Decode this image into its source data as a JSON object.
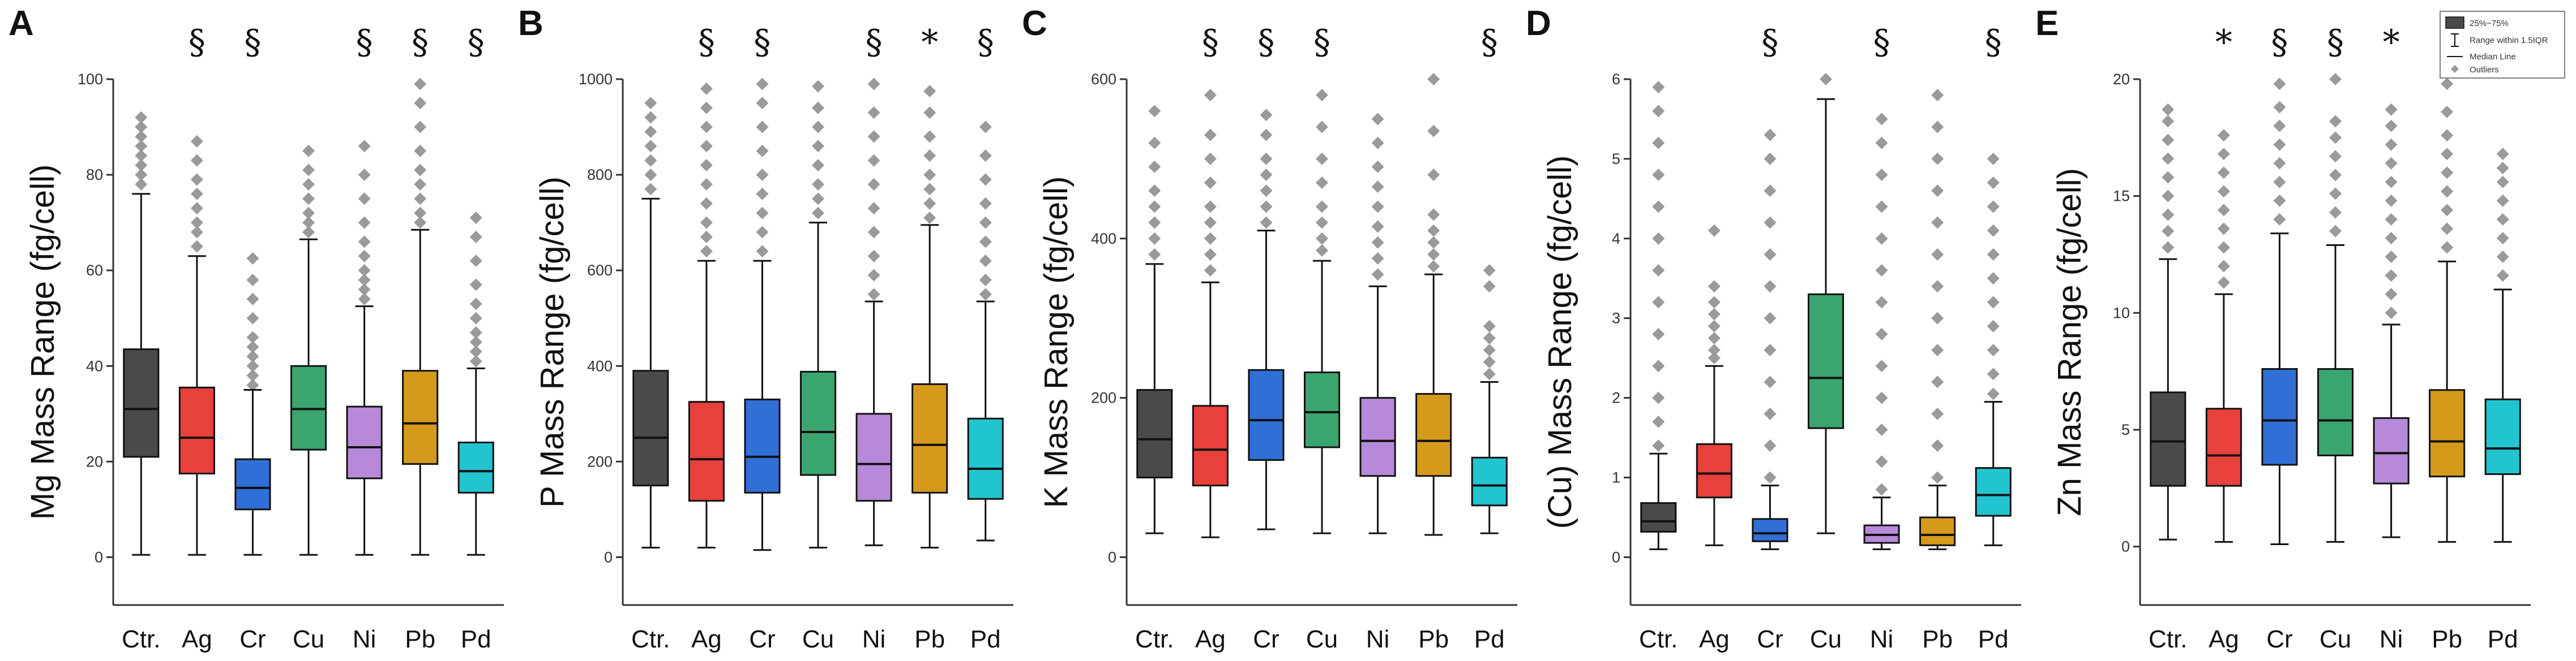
{
  "colors": {
    "Ctr.": "#4a4a4a",
    "Ag": "#e8403a",
    "Cr": "#2f6fd6",
    "Cu": "#3aa56e",
    "Ni": "#b68ad8",
    "Pb": "#d59a1c",
    "Pd": "#22c4cf",
    "outlier": "#9a9a9a"
  },
  "legend": {
    "box": "25%~75%",
    "whisker": "Range within 1.5IQR",
    "median": "Median Line",
    "outlier": "Outliers"
  },
  "chart_data": [
    {
      "type": "box",
      "panel": "A",
      "title": "",
      "ylabel": "Mg Mass Range (fg/cell)",
      "xlabel": "",
      "ylim": [
        -10,
        100
      ],
      "yticks": [
        0,
        20,
        40,
        60,
        80,
        100
      ],
      "categories": [
        "Ctr.",
        "Ag",
        "Cr",
        "Cu",
        "Ni",
        "Pb",
        "Pd"
      ],
      "significance": [
        "",
        "§",
        "§",
        "",
        "§",
        "§",
        "§"
      ],
      "boxes": [
        {
          "min": 0.5,
          "q1": 21,
          "median": 31,
          "q3": 43.5,
          "max": 76,
          "outliers": [
            78,
            80,
            82,
            84,
            86,
            88,
            90,
            92
          ]
        },
        {
          "min": 0.5,
          "q1": 17.5,
          "median": 25,
          "q3": 35.5,
          "max": 63,
          "outliers": [
            65,
            68,
            70,
            73,
            76,
            79,
            83,
            87
          ]
        },
        {
          "min": 0.5,
          "q1": 10,
          "median": 14.5,
          "q3": 20.5,
          "max": 35,
          "outliers": [
            36,
            38,
            40,
            42,
            44,
            46,
            50,
            54,
            58,
            62.5
          ]
        },
        {
          "min": 0.5,
          "q1": 22.5,
          "median": 31,
          "q3": 40,
          "max": 66.5,
          "outliers": [
            68,
            70,
            72,
            75,
            78,
            81,
            85
          ]
        },
        {
          "min": 0.5,
          "q1": 16.5,
          "median": 23,
          "q3": 31.5,
          "max": 52.5,
          "outliers": [
            54,
            56,
            58,
            60,
            63,
            66,
            70,
            75,
            80,
            86
          ]
        },
        {
          "min": 0.5,
          "q1": 19.5,
          "median": 28,
          "q3": 39,
          "max": 68.5,
          "outliers": [
            70,
            72,
            75,
            78,
            81,
            85,
            90,
            95,
            99
          ]
        },
        {
          "min": 0.5,
          "q1": 13.5,
          "median": 18,
          "q3": 24,
          "max": 39.5,
          "outliers": [
            41,
            43,
            45,
            47,
            50,
            53,
            57,
            62,
            67,
            71
          ]
        }
      ]
    },
    {
      "type": "box",
      "panel": "B",
      "title": "",
      "ylabel": "P Mass Range (fg/cell)",
      "xlabel": "",
      "ylim": [
        -100,
        1000
      ],
      "yticks": [
        0,
        200,
        400,
        600,
        800,
        1000
      ],
      "categories": [
        "Ctr.",
        "Ag",
        "Cr",
        "Cu",
        "Ni",
        "Pb",
        "Pd"
      ],
      "significance": [
        "",
        "§",
        "§",
        "",
        "§",
        "*",
        "§"
      ],
      "boxes": [
        {
          "min": 20,
          "q1": 150,
          "median": 250,
          "q3": 390,
          "max": 750,
          "outliers": [
            770,
            800,
            830,
            860,
            890,
            920,
            950
          ]
        },
        {
          "min": 20,
          "q1": 118,
          "median": 205,
          "q3": 325,
          "max": 620,
          "outliers": [
            640,
            670,
            700,
            740,
            780,
            820,
            860,
            900,
            940,
            980
          ]
        },
        {
          "min": 15,
          "q1": 135,
          "median": 210,
          "q3": 330,
          "max": 620,
          "outliers": [
            640,
            680,
            720,
            760,
            800,
            850,
            900,
            950,
            990
          ]
        },
        {
          "min": 20,
          "q1": 172,
          "median": 262,
          "q3": 388,
          "max": 700,
          "outliers": [
            720,
            750,
            780,
            820,
            860,
            900,
            940,
            985
          ]
        },
        {
          "min": 25,
          "q1": 118,
          "median": 195,
          "q3": 300,
          "max": 535,
          "outliers": [
            550,
            590,
            630,
            680,
            730,
            780,
            830,
            880,
            930,
            990
          ]
        },
        {
          "min": 20,
          "q1": 135,
          "median": 235,
          "q3": 362,
          "max": 695,
          "outliers": [
            710,
            740,
            770,
            800,
            840,
            880,
            930,
            975
          ]
        },
        {
          "min": 35,
          "q1": 122,
          "median": 185,
          "q3": 290,
          "max": 535,
          "outliers": [
            550,
            580,
            620,
            660,
            700,
            740,
            790,
            840,
            900
          ]
        }
      ]
    },
    {
      "type": "box",
      "panel": "C",
      "title": "",
      "ylabel": "K Mass Range (fg/cell)",
      "xlabel": "",
      "ylim": [
        -60,
        600
      ],
      "yticks": [
        0,
        200,
        400,
        600
      ],
      "categories": [
        "Ctr.",
        "Ag",
        "Cr",
        "Cu",
        "Ni",
        "Pb",
        "Pd"
      ],
      "significance": [
        "",
        "§",
        "§",
        "§",
        "",
        "",
        "§"
      ],
      "boxes": [
        {
          "min": 30,
          "q1": 100,
          "median": 148,
          "q3": 210,
          "max": 368,
          "outliers": [
            380,
            400,
            420,
            440,
            460,
            490,
            520,
            560
          ]
        },
        {
          "min": 25,
          "q1": 90,
          "median": 135,
          "q3": 190,
          "max": 345,
          "outliers": [
            360,
            380,
            400,
            420,
            440,
            470,
            500,
            530,
            580
          ]
        },
        {
          "min": 35,
          "q1": 122,
          "median": 172,
          "q3": 235,
          "max": 410,
          "outliers": [
            420,
            440,
            460,
            480,
            500,
            530,
            555
          ]
        },
        {
          "min": 30,
          "q1": 138,
          "median": 182,
          "q3": 232,
          "max": 372,
          "outliers": [
            385,
            400,
            420,
            440,
            470,
            500,
            540,
            580
          ]
        },
        {
          "min": 30,
          "q1": 102,
          "median": 146,
          "q3": 200,
          "max": 340,
          "outliers": [
            355,
            375,
            395,
            415,
            440,
            465,
            490,
            520,
            550
          ]
        },
        {
          "min": 28,
          "q1": 102,
          "median": 146,
          "q3": 205,
          "max": 355,
          "outliers": [
            365,
            380,
            395,
            410,
            430,
            480,
            535,
            600
          ]
        },
        {
          "min": 30,
          "q1": 65,
          "median": 90,
          "q3": 125,
          "max": 220,
          "outliers": [
            230,
            245,
            260,
            275,
            290,
            340,
            360
          ]
        }
      ]
    },
    {
      "type": "box",
      "panel": "D",
      "title": "",
      "ylabel": "(Cu) Mass Range (fg/cell)",
      "xlabel": "",
      "ylim": [
        -0.6,
        6
      ],
      "yticks": [
        0,
        1,
        2,
        3,
        4,
        5,
        6
      ],
      "categories": [
        "Ctr.",
        "Ag",
        "Cr",
        "Cu",
        "Ni",
        "Pb",
        "Pd"
      ],
      "significance": [
        "",
        "",
        "§",
        "",
        "§",
        "",
        "§"
      ],
      "boxes": [
        {
          "min": 0.1,
          "q1": 0.32,
          "median": 0.45,
          "q3": 0.68,
          "max": 1.3,
          "outliers": [
            1.4,
            1.7,
            2.0,
            2.4,
            2.8,
            3.2,
            3.6,
            4.0,
            4.4,
            4.8,
            5.2,
            5.6,
            5.9
          ]
        },
        {
          "min": 0.15,
          "q1": 0.75,
          "median": 1.05,
          "q3": 1.42,
          "max": 2.4,
          "outliers": [
            2.5,
            2.6,
            2.75,
            2.9,
            3.05,
            3.2,
            3.4,
            4.1
          ]
        },
        {
          "min": 0.1,
          "q1": 0.2,
          "median": 0.3,
          "q3": 0.48,
          "max": 0.9,
          "outliers": [
            1.0,
            1.4,
            1.8,
            2.2,
            2.6,
            3.0,
            3.4,
            3.8,
            4.2,
            4.6,
            5.0,
            5.3
          ]
        },
        {
          "min": 0.3,
          "q1": 1.62,
          "median": 2.25,
          "q3": 3.3,
          "max": 5.75,
          "outliers": [
            6.0
          ]
        },
        {
          "min": 0.1,
          "q1": 0.18,
          "median": 0.28,
          "q3": 0.4,
          "max": 0.75,
          "outliers": [
            0.85,
            1.2,
            1.6,
            2.0,
            2.4,
            2.8,
            3.2,
            3.6,
            4.0,
            4.4,
            4.8,
            5.2,
            5.5
          ]
        },
        {
          "min": 0.1,
          "q1": 0.15,
          "median": 0.28,
          "q3": 0.5,
          "max": 0.9,
          "outliers": [
            1.0,
            1.4,
            1.8,
            2.2,
            2.6,
            3.0,
            3.4,
            3.8,
            4.2,
            4.6,
            5.0,
            5.4,
            5.8
          ]
        },
        {
          "min": 0.15,
          "q1": 0.52,
          "median": 0.78,
          "q3": 1.12,
          "max": 1.95,
          "outliers": [
            2.05,
            2.3,
            2.6,
            2.9,
            3.2,
            3.5,
            3.8,
            4.1,
            4.4,
            4.7,
            5.0
          ]
        }
      ]
    },
    {
      "type": "box",
      "panel": "E",
      "title": "",
      "ylabel": "Zn Mass Range (fg/cell)",
      "xlabel": "",
      "ylim": [
        -2.5,
        20
      ],
      "yticks": [
        0,
        5,
        10,
        15,
        20
      ],
      "categories": [
        "Ctr.",
        "Ag",
        "Cr",
        "Cu",
        "Ni",
        "Pb",
        "Pd"
      ],
      "significance": [
        "",
        "*",
        "§",
        "§",
        "*",
        "",
        ""
      ],
      "legend_position": "top-right",
      "boxes": [
        {
          "min": 0.3,
          "q1": 2.6,
          "median": 4.5,
          "q3": 6.6,
          "max": 12.3,
          "outliers": [
            12.8,
            13.5,
            14.2,
            15.0,
            15.8,
            16.6,
            17.4,
            18.2,
            18.7
          ]
        },
        {
          "min": 0.2,
          "q1": 2.6,
          "median": 3.9,
          "q3": 5.9,
          "max": 10.8,
          "outliers": [
            11.3,
            12.0,
            12.8,
            13.6,
            14.4,
            15.2,
            16.0,
            16.8,
            17.6
          ]
        },
        {
          "min": 0.1,
          "q1": 3.5,
          "median": 5.4,
          "q3": 7.6,
          "max": 13.4,
          "outliers": [
            14.0,
            14.8,
            15.6,
            16.4,
            17.2,
            18.0,
            18.8,
            19.8
          ]
        },
        {
          "min": 0.2,
          "q1": 3.9,
          "median": 5.4,
          "q3": 7.6,
          "max": 12.9,
          "outliers": [
            13.5,
            14.3,
            15.1,
            15.9,
            16.7,
            17.5,
            18.2,
            20.0
          ]
        },
        {
          "min": 0.4,
          "q1": 2.7,
          "median": 4.0,
          "q3": 5.5,
          "max": 9.5,
          "outliers": [
            10.0,
            10.8,
            11.6,
            12.4,
            13.2,
            14.0,
            14.8,
            15.6,
            16.4,
            17.2,
            18.0,
            18.7
          ]
        },
        {
          "min": 0.2,
          "q1": 3.0,
          "median": 4.5,
          "q3": 6.7,
          "max": 12.2,
          "outliers": [
            12.8,
            13.6,
            14.4,
            15.2,
            16.0,
            16.8,
            17.6,
            18.6,
            19.8
          ]
        },
        {
          "min": 0.2,
          "q1": 3.1,
          "median": 4.2,
          "q3": 6.3,
          "max": 11.0,
          "outliers": [
            11.6,
            12.4,
            13.2,
            14.0,
            14.8,
            15.6,
            16.2,
            16.8
          ]
        }
      ]
    }
  ]
}
